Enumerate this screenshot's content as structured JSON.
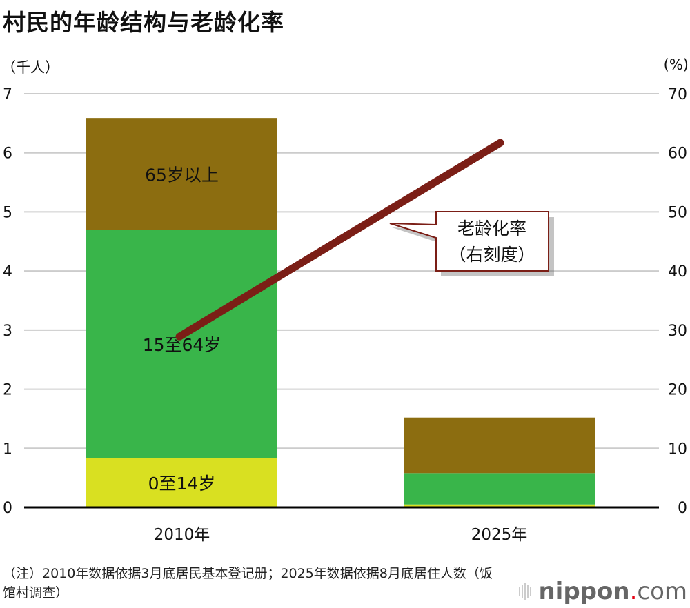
{
  "title": "村民的年龄结构与老龄化率",
  "left_unit": "（千人）",
  "right_unit": "(%)",
  "chart_data": {
    "type": "bar+line",
    "title": "村民的年龄结构与老龄化率",
    "categories": [
      "2010年",
      "2025年"
    ],
    "series": [
      {
        "name": "0至14岁",
        "values": [
          0.84,
          0.05
        ],
        "color": "#d9e021"
      },
      {
        "name": "15至64岁",
        "values": [
          3.85,
          0.53
        ],
        "color": "#39b54a"
      },
      {
        "name": "65岁以上",
        "values": [
          1.9,
          0.94
        ],
        "color": "#8c6d10"
      }
    ],
    "line": {
      "name": "老龄化率",
      "sub": "（右刻度）",
      "values": [
        28.9,
        61.7
      ],
      "color": "#7b1e16",
      "axis": "right"
    },
    "ylim_left": [
      0,
      7
    ],
    "ylim_right": [
      0,
      70
    ],
    "left_ticks": [
      "0",
      "1",
      "2",
      "3",
      "4",
      "5",
      "6",
      "7"
    ],
    "right_ticks": [
      "0",
      "10",
      "20",
      "30",
      "40",
      "50",
      "60",
      "70"
    ],
    "grid": true
  },
  "note": "（注）2010年数据依据3月底居民基本登记册；2025年数据依据8月底居住人数（饭馆村调查）",
  "logo": {
    "main": "nippon",
    "dot": ".",
    "suffix": "com"
  }
}
